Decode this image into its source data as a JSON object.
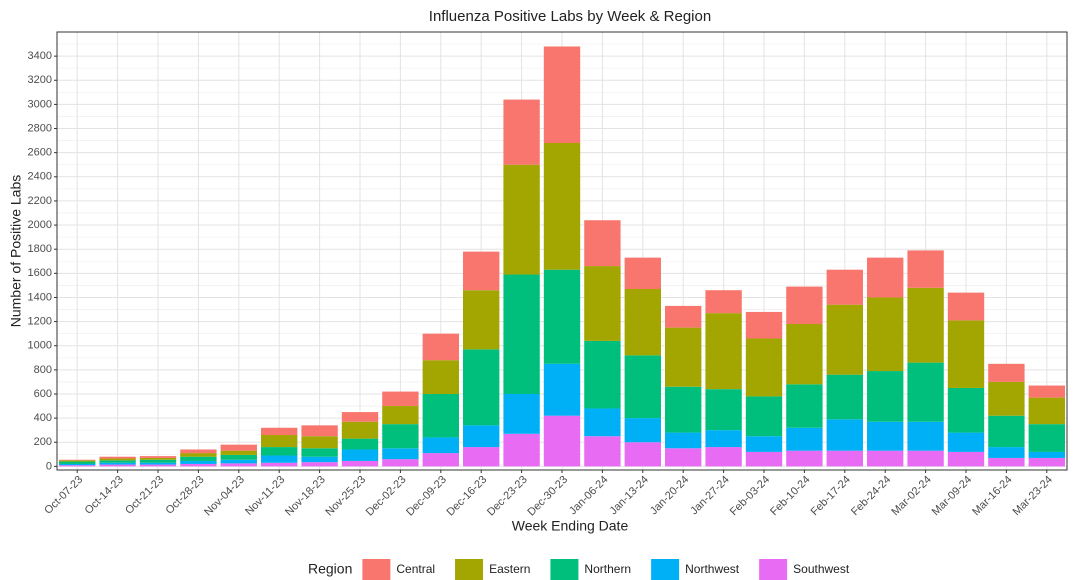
{
  "chart_data": {
    "type": "stacked_bar",
    "title": "Influenza Positive Labs by Week & Region",
    "x_label": "Week Ending Date",
    "y_label": "Number of Positive Labs",
    "legend_title": "Region",
    "categories": [
      "Oct-07-23",
      "Oct-14-23",
      "Oct-21-23",
      "Oct-28-23",
      "Nov-04-23",
      "Nov-11-23",
      "Nov-18-23",
      "Nov-25-23",
      "Dec-02-23",
      "Dec-09-23",
      "Dec-16-23",
      "Dec-23-23",
      "Dec-30-23",
      "Jan-06-24",
      "Jan-13-24",
      "Jan-20-24",
      "Jan-27-24",
      "Feb-03-24",
      "Feb-10-24",
      "Feb-17-24",
      "Feb-24-24",
      "Mar-02-24",
      "Mar-09-24",
      "Mar-16-24",
      "Mar-23-24"
    ],
    "series": [
      {
        "name": "Central",
        "color": "#F8766D",
        "values": [
          5,
          15,
          15,
          30,
          50,
          60,
          90,
          80,
          120,
          220,
          320,
          540,
          800,
          380,
          260,
          180,
          190,
          220,
          310,
          290,
          330,
          310,
          230,
          150,
          100
        ]
      },
      {
        "name": "Eastern",
        "color": "#A3A500",
        "values": [
          10,
          15,
          15,
          30,
          35,
          100,
          100,
          140,
          150,
          280,
          490,
          910,
          1050,
          620,
          550,
          490,
          630,
          480,
          500,
          580,
          610,
          620,
          560,
          280,
          220
        ]
      },
      {
        "name": "Northern",
        "color": "#00BF7D",
        "values": [
          20,
          20,
          25,
          35,
          40,
          70,
          70,
          90,
          200,
          360,
          630,
          990,
          780,
          560,
          520,
          380,
          340,
          330,
          360,
          370,
          420,
          490,
          370,
          260,
          230
        ]
      },
      {
        "name": "Northwest",
        "color": "#00B0F6",
        "values": [
          10,
          15,
          15,
          25,
          30,
          60,
          45,
          95,
          90,
          130,
          180,
          330,
          430,
          230,
          200,
          130,
          140,
          130,
          190,
          260,
          240,
          240,
          160,
          90,
          50
        ]
      },
      {
        "name": "Southwest",
        "color": "#E76BF3",
        "values": [
          10,
          15,
          15,
          20,
          25,
          30,
          35,
          45,
          60,
          110,
          160,
          270,
          420,
          250,
          200,
          150,
          160,
          120,
          130,
          130,
          130,
          130,
          120,
          70,
          70
        ]
      }
    ],
    "ylim": [
      -30,
      3600
    ],
    "yticks": [
      0,
      200,
      400,
      600,
      800,
      1000,
      1200,
      1400,
      1600,
      1800,
      2000,
      2200,
      2400,
      2600,
      2800,
      3000,
      3200,
      3400
    ],
    "grid": true,
    "legend_position": "bottom"
  }
}
